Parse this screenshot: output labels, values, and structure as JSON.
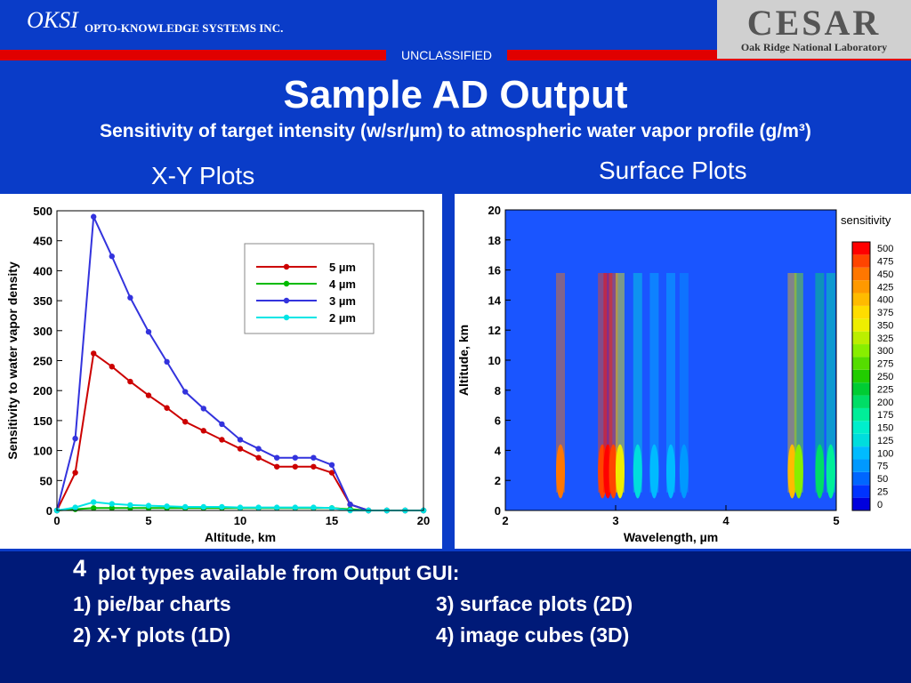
{
  "header": {
    "logo": "OKSI",
    "company": "OPTO-KNOWLEDGE SYSTEMS INC.",
    "classification": "UNCLASSIFIED",
    "partner_logo": "CESAR",
    "partner_name": "Oak Ridge National Laboratory"
  },
  "title": "Sample AD Output",
  "subtitle": "Sensitivity of target intensity (w/sr/µm) to atmospheric water vapor profile (g/m³)",
  "sections": [
    "X-Y Plots",
    "Surface Plots"
  ],
  "footer": {
    "count": "4",
    "heading": "plot types available from Output GUI:",
    "items": [
      "1)   pie/bar charts",
      "3) surface plots (2D)",
      "2)   X-Y plots (1D)",
      "4) image cubes (3D)"
    ]
  },
  "chart_data": [
    {
      "type": "line",
      "xlabel": "Altitude, km",
      "ylabel": "Sensitivity to water vapor density",
      "x": [
        0,
        1,
        2,
        3,
        4,
        5,
        6,
        7,
        8,
        9,
        10,
        11,
        12,
        13,
        14,
        15,
        16,
        17,
        18,
        19,
        20
      ],
      "xlim": [
        0,
        20
      ],
      "xticks": [
        0,
        5,
        10,
        15,
        20
      ],
      "ylim": [
        0,
        500
      ],
      "yticks": [
        0,
        50,
        100,
        150,
        200,
        250,
        300,
        350,
        400,
        450,
        500
      ],
      "series": [
        {
          "name": "5 µm",
          "color": "#cc0000",
          "values": [
            0,
            63,
            262,
            240,
            215,
            192,
            171,
            148,
            133,
            118,
            103,
            88,
            73,
            73,
            73,
            63,
            10,
            0,
            0,
            0,
            0
          ]
        },
        {
          "name": "4 µm",
          "color": "#00bb00",
          "values": [
            0,
            2,
            4,
            4,
            4,
            4,
            4,
            4,
            4,
            4,
            4,
            4,
            4,
            4,
            4,
            4,
            2,
            0,
            0,
            0,
            0
          ]
        },
        {
          "name": "3 µm",
          "color": "#3333dd",
          "values": [
            0,
            120,
            490,
            424,
            355,
            298,
            248,
            198,
            170,
            144,
            118,
            103,
            88,
            88,
            88,
            76,
            10,
            0,
            0,
            0,
            0
          ]
        },
        {
          "name": "2 µm",
          "color": "#00e5e5",
          "values": [
            0,
            5,
            14,
            11,
            9,
            8,
            7,
            6,
            6,
            6,
            5,
            5,
            5,
            5,
            5,
            4,
            0,
            0,
            0,
            0,
            0
          ]
        }
      ]
    },
    {
      "type": "surface",
      "xlabel": "Wavelength, µm",
      "ylabel": "Altitude, km",
      "xlim": [
        2,
        5
      ],
      "xticks": [
        2,
        3,
        4,
        5
      ],
      "ylim": [
        0,
        20
      ],
      "yticks": [
        0,
        2,
        4,
        6,
        8,
        10,
        12,
        14,
        16,
        18,
        20
      ],
      "x": [
        2.5,
        2.88,
        2.93,
        2.98,
        3.04,
        3.2,
        3.35,
        3.5,
        3.62,
        4.6,
        4.66,
        4.85,
        4.95
      ],
      "values": [
        450,
        480,
        500,
        480,
        350,
        125,
        100,
        100,
        75,
        400,
        300,
        200,
        175
      ],
      "colorbar": {
        "title": "sensitivity",
        "levels": [
          0,
          25,
          50,
          75,
          100,
          125,
          150,
          175,
          200,
          225,
          250,
          275,
          300,
          325,
          350,
          375,
          400,
          425,
          450,
          475,
          500
        ],
        "colors": [
          "#0000dd",
          "#0033ff",
          "#0066ff",
          "#0099ff",
          "#00bbff",
          "#00dddd",
          "#00eecc",
          "#00ee99",
          "#00dd66",
          "#00cc33",
          "#22cc00",
          "#55dd00",
          "#88ee00",
          "#bbee00",
          "#eeee00",
          "#ffdd00",
          "#ffbb00",
          "#ff9900",
          "#ff7700",
          "#ff4400",
          "#ff0000"
        ]
      }
    }
  ]
}
